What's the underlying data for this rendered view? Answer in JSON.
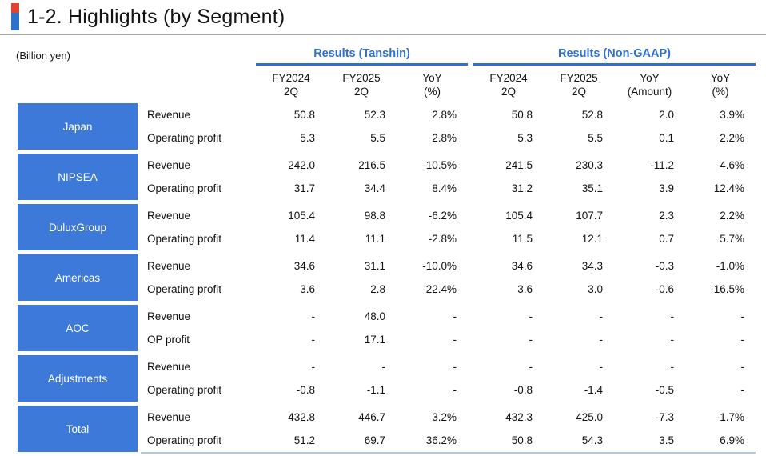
{
  "title": "1-2. Highlights (by Segment)",
  "unit_label": "(Billion yen)",
  "colors": {
    "accent_blue": "#3C79D8",
    "header_text_blue": "#2E6FD6",
    "marker_red": "#E04331",
    "marker_blue": "#2E71C8",
    "divider_gray": "#A9A9A9"
  },
  "table": {
    "groups": [
      {
        "label": "Results (Tanshin)",
        "columns": [
          {
            "l1": "FY2024",
            "l2": "2Q"
          },
          {
            "l1": "FY2025",
            "l2": "2Q"
          },
          {
            "l1": "YoY",
            "l2": "(%)"
          }
        ]
      },
      {
        "label": "Results (Non-GAAP)",
        "columns": [
          {
            "l1": "FY2024",
            "l2": "2Q"
          },
          {
            "l1": "FY2025",
            "l2": "2Q"
          },
          {
            "l1": "YoY",
            "l2": "(Amount)"
          },
          {
            "l1": "YoY",
            "l2": "(%)"
          }
        ]
      }
    ],
    "segments": [
      {
        "name": "Japan",
        "rows": [
          {
            "label": "Revenue",
            "tanshin": [
              "50.8",
              "52.3",
              "2.8%"
            ],
            "nongaap": [
              "50.8",
              "52.8",
              "2.0",
              "3.9%"
            ]
          },
          {
            "label": "Operating profit",
            "tanshin": [
              "5.3",
              "5.5",
              "2.8%"
            ],
            "nongaap": [
              "5.3",
              "5.5",
              "0.1",
              "2.2%"
            ]
          }
        ]
      },
      {
        "name": "NIPSEA",
        "rows": [
          {
            "label": "Revenue",
            "tanshin": [
              "242.0",
              "216.5",
              "-10.5%"
            ],
            "nongaap": [
              "241.5",
              "230.3",
              "-11.2",
              "-4.6%"
            ]
          },
          {
            "label": "Operating profit",
            "tanshin": [
              "31.7",
              "34.4",
              "8.4%"
            ],
            "nongaap": [
              "31.2",
              "35.1",
              "3.9",
              "12.4%"
            ]
          }
        ]
      },
      {
        "name": "DuluxGroup",
        "rows": [
          {
            "label": "Revenue",
            "tanshin": [
              "105.4",
              "98.8",
              "-6.2%"
            ],
            "nongaap": [
              "105.4",
              "107.7",
              "2.3",
              "2.2%"
            ]
          },
          {
            "label": "Operating profit",
            "tanshin": [
              "11.4",
              "11.1",
              "-2.8%"
            ],
            "nongaap": [
              "11.5",
              "12.1",
              "0.7",
              "5.7%"
            ]
          }
        ]
      },
      {
        "name": "Americas",
        "rows": [
          {
            "label": "Revenue",
            "tanshin": [
              "34.6",
              "31.1",
              "-10.0%"
            ],
            "nongaap": [
              "34.6",
              "34.3",
              "-0.3",
              "-1.0%"
            ]
          },
          {
            "label": "Operating profit",
            "tanshin": [
              "3.6",
              "2.8",
              "-22.4%"
            ],
            "nongaap": [
              "3.6",
              "3.0",
              "-0.6",
              "-16.5%"
            ]
          }
        ]
      },
      {
        "name": "AOC",
        "rows": [
          {
            "label": "Revenue",
            "tanshin": [
              "-",
              "48.0",
              "-"
            ],
            "nongaap": [
              "-",
              "-",
              "-",
              "-"
            ]
          },
          {
            "label": "OP profit",
            "tanshin": [
              "-",
              "17.1",
              "-"
            ],
            "nongaap": [
              "-",
              "-",
              "-",
              "-"
            ]
          }
        ]
      },
      {
        "name": "Adjustments",
        "rows": [
          {
            "label": "Revenue",
            "tanshin": [
              "-",
              "-",
              "-"
            ],
            "nongaap": [
              "-",
              "-",
              "-",
              "-"
            ]
          },
          {
            "label": "Operating profit",
            "tanshin": [
              "-0.8",
              "-1.1",
              "-"
            ],
            "nongaap": [
              "-0.8",
              "-1.4",
              "-0.5",
              "-"
            ]
          }
        ]
      },
      {
        "name": "Total",
        "rows": [
          {
            "label": "Revenue",
            "tanshin": [
              "432.8",
              "446.7",
              "3.2%"
            ],
            "nongaap": [
              "432.3",
              "425.0",
              "-7.3",
              "-1.7%"
            ]
          },
          {
            "label": "Operating profit",
            "tanshin": [
              "51.2",
              "69.7",
              "36.2%"
            ],
            "nongaap": [
              "50.8",
              "54.3",
              "3.5",
              "6.9%"
            ]
          }
        ]
      }
    ]
  }
}
